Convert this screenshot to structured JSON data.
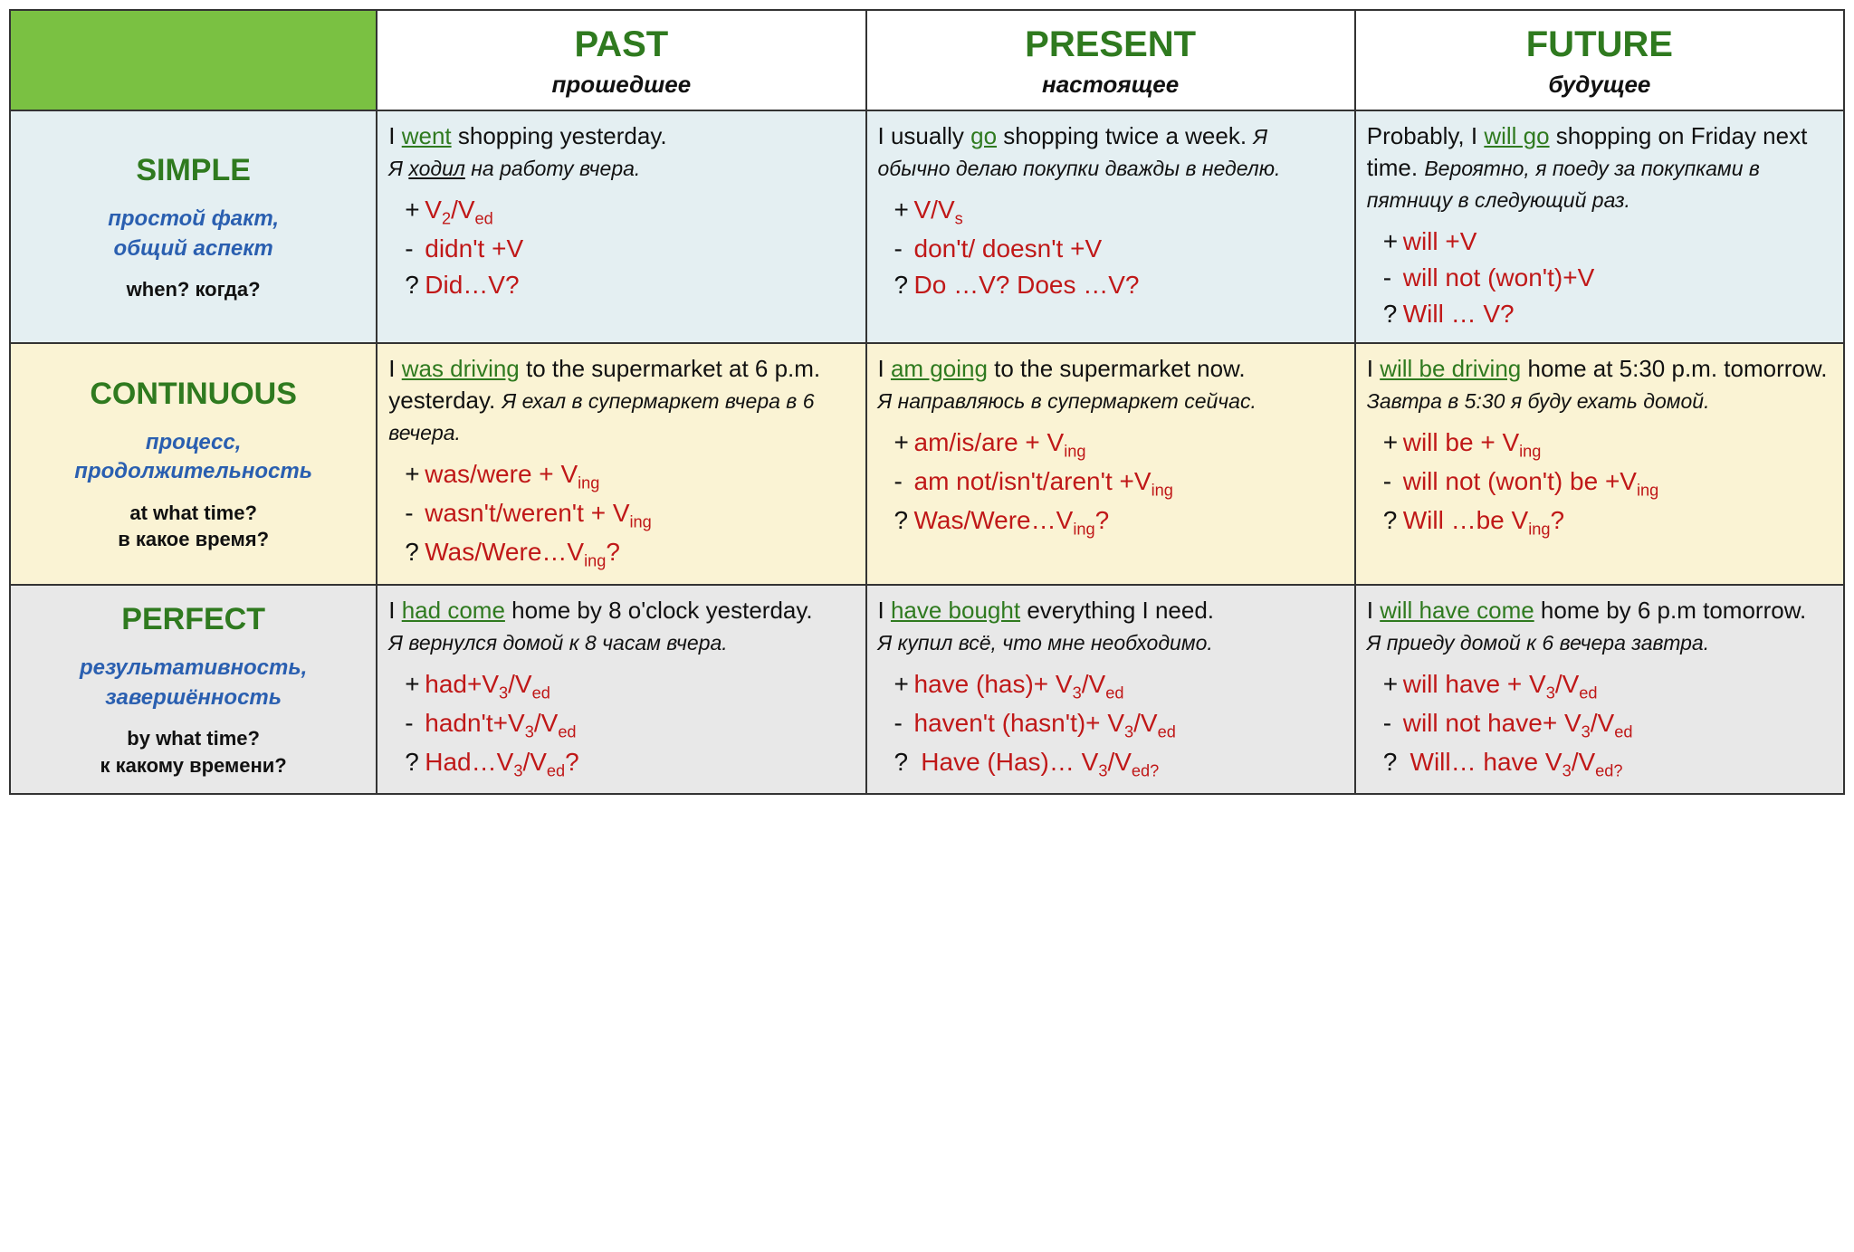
{
  "colors": {
    "green_text": "#2f7a1f",
    "blue_text": "#2a5fb0",
    "red_text": "#c01818",
    "corner_bg": "#7ac142",
    "row_bg": [
      "#e4eff2",
      "#faf3d4",
      "#e8e8e8"
    ],
    "border": "#333333"
  },
  "columns": [
    {
      "en": "PAST",
      "ru": "прошедшее"
    },
    {
      "en": "PRESENT",
      "ru": "настоящее"
    },
    {
      "en": "FUTURE",
      "ru": "будущее"
    }
  ],
  "rows": [
    {
      "en": "SIMPLE",
      "desc": "простой факт,\nобщий аспект",
      "q": "when? когда?"
    },
    {
      "en": "CONTINUOUS",
      "desc": "процесс,\nпродолжительность",
      "q": "at what time?\nв какое время?"
    },
    {
      "en": "PERFECT",
      "desc": "результативность,\nзавершённость",
      "q": "by what time?\nк какому времени?"
    }
  ],
  "cells": {
    "simple": {
      "past": {
        "en_pre": "I ",
        "en_verb": "went",
        "en_post": " shopping yesterday.",
        "ru_pre": "Я ",
        "ru_u": "ходил",
        "ru_post": " на работу вчера.",
        "plus": "V<sub>2</sub>/V<sub>ed</sub>",
        "minus": "didn't +V",
        "quest": "Did…V?"
      },
      "present": {
        "en_pre": "I usually ",
        "en_verb": "go",
        "en_post": " shopping twice a week.",
        "ru_pre": "",
        "ru_u": "",
        "ru_post": "Я обычно делаю покупки дважды в неделю.",
        "plus": "V/V<sub>s</sub>",
        "minus": "don't/ doesn't +V",
        "quest": "Do …V? Does …V?"
      },
      "future": {
        "en_pre": "Probably, I ",
        "en_verb": "will go",
        "en_post": " shopping on Friday next time.",
        "ru_pre": "",
        "ru_u": "",
        "ru_post": "Вероятно, я поеду за покупками в пятницу в следующий раз.",
        "plus": "will +V",
        "minus": "will not (won't)+V",
        "quest": "Will … V?"
      }
    },
    "continuous": {
      "past": {
        "en_pre": "I ",
        "en_verb": "was driving",
        "en_post": " to the supermarket at 6 p.m. yesterday.",
        "ru_pre": "",
        "ru_u": "",
        "ru_post": "Я ехал в супермаркет вчера в 6 вечера.",
        "plus": "was/were + V<sub>ing</sub>",
        "minus": "wasn't/weren't + V<sub>ing</sub>",
        "quest": "Was/Were…V<sub>ing</sub>?"
      },
      "present": {
        "en_pre": "I ",
        "en_verb": "am going",
        "en_post": " to the supermarket now.",
        "ru_pre": "",
        "ru_u": "",
        "ru_post": "Я направляюсь в супермаркет сейчас.",
        "plus": "am/is/are + V<sub>ing</sub>",
        "minus": "am not/isn't/aren't +V<sub>ing</sub>",
        "quest": "Was/Were…V<sub>ing</sub>?"
      },
      "future": {
        "en_pre": "I ",
        "en_verb": "will be driving",
        "en_post": " home at 5:30 p.m. tomorrow.",
        "ru_pre": "",
        "ru_u": "",
        "ru_post": "Завтра в 5:30 я буду ехать домой.",
        "plus": "will be + V<sub>ing</sub>",
        "minus": "will not (won't) be +V<sub>ing</sub>",
        "quest": "Will …be V<sub>ing</sub>?"
      }
    },
    "perfect": {
      "past": {
        "en_pre": "I ",
        "en_verb": "had come",
        "en_post": " home by 8 o'clock yesterday.",
        "ru_pre": "",
        "ru_u": "",
        "ru_post": "Я вернулся домой к 8 часам вчера.",
        "plus": "had+V<sub>3</sub>/V<sub>ed</sub>",
        "minus": "hadn't+V<sub>3</sub>/V<sub>ed</sub>",
        "quest": "Had…V<sub>3</sub>/V<sub>ed</sub>?"
      },
      "present": {
        "en_pre": "I ",
        "en_verb": "have bought",
        "en_post": " everything I need.",
        "ru_pre": "",
        "ru_u": "",
        "ru_post": "Я купил всё, что мне необходимо.",
        "plus": "have (has)+ V<sub>3</sub>/V<sub>ed</sub>",
        "minus": "haven't (hasn't)+ V<sub>3</sub>/V<sub>ed</sub>",
        "quest": " Have (Has)… V<sub>3</sub>/V<sub>ed?</sub>"
      },
      "future": {
        "en_pre": "I ",
        "en_verb": "will have come",
        "en_post": " home by 6 p.m tomorrow.",
        "ru_pre": "",
        "ru_u": "",
        "ru_post": "Я приеду домой к 6 вечера завтра.",
        "plus": "will have + V<sub>3</sub>/V<sub>ed</sub>",
        "minus": "will not have+ V<sub>3</sub>/V<sub>ed</sub>",
        "quest": " Will… have V<sub>3</sub>/V<sub>ed?</sub>"
      }
    }
  }
}
